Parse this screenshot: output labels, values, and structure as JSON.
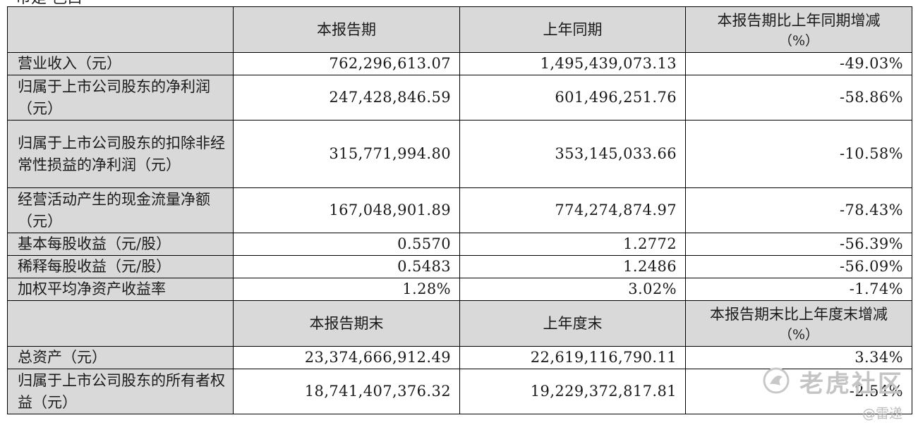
{
  "top_text": "币是 色白",
  "header1": {
    "col1": "本报告期",
    "col2": "上年同期",
    "col3_line1": "本报告期比上年同期增减",
    "col3_line2": "（%）"
  },
  "rows1": [
    {
      "label": "营业收入（元）",
      "current": "762,296,613.07",
      "prior": "1,495,439,073.13",
      "change": "-49.03%"
    },
    {
      "label": "归属于上市公司股东的净利润（元）",
      "current": "247,428,846.59",
      "prior": "601,496,251.76",
      "change": "-58.86%"
    },
    {
      "label": "归属于上市公司股东的扣除非经常性损益的净利润（元）",
      "current": "315,771,994.80",
      "prior": "353,145,033.66",
      "change": "-10.58%"
    },
    {
      "label": "经营活动产生的现金流量净额（元）",
      "current": "167,048,901.89",
      "prior": "774,274,874.97",
      "change": "-78.43%"
    },
    {
      "label": "基本每股收益（元/股）",
      "current": "0.5570",
      "prior": "1.2772",
      "change": "-56.39%"
    },
    {
      "label": "稀释每股收益（元/股）",
      "current": "0.5483",
      "prior": "1.2486",
      "change": "-56.09%"
    },
    {
      "label": "加权平均净资产收益率",
      "current": "1.28%",
      "prior": "3.02%",
      "change": "-1.74%"
    }
  ],
  "header2": {
    "col1": "本报告期末",
    "col2": "上年度末",
    "col3_line1": "本报告期末比上年度末增减",
    "col3_line2": "（%）"
  },
  "rows2": [
    {
      "label": "总资产（元）",
      "current": "23,374,666,912.49",
      "prior": "22,619,116,790.11",
      "change": "3.34%"
    },
    {
      "label": "归属于上市公司股东的所有者权益（元）",
      "current": "18,741,407,376.32",
      "prior": "19,229,372,817.81",
      "change": "-2.54%"
    }
  ],
  "watermark": {
    "name": "老虎社区",
    "user": "@雷递",
    "icon": "tiger-logo-icon"
  }
}
